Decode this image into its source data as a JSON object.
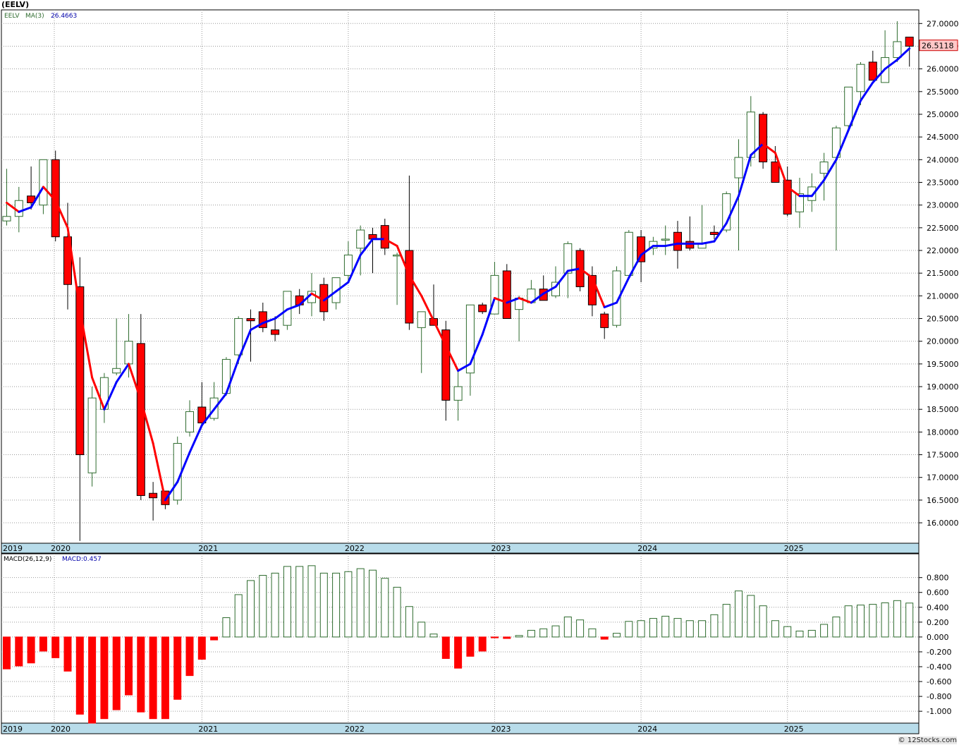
{
  "title": "(EELV)",
  "credit": "© 12Stocks.com",
  "colors": {
    "up": "#2e6b2e",
    "down": "#ff0000",
    "ma_up": "#0000ff",
    "ma_down": "#ff0000",
    "axis_band": "#b8dcea",
    "price_tag": "#ffc8c8"
  },
  "chart_data": [
    {
      "type": "candlestick",
      "name": "price",
      "legend": {
        "ticker": "EELV",
        "ma_label": "MA(3)",
        "ma_value": "26.4663"
      },
      "last_price_label": "26.5118",
      "ylim": [
        15.55,
        27.3
      ],
      "yticks": [
        "27.0000",
        "26.5000",
        "26.0000",
        "25.5000",
        "25.0000",
        "24.5000",
        "24.0000",
        "23.5000",
        "23.0000",
        "22.5000",
        "22.0000",
        "21.5000",
        "21.0000",
        "20.5000",
        "20.0000",
        "19.5000",
        "19.0000",
        "18.5000",
        "18.0000",
        "17.5000",
        "17.0000",
        "16.5000",
        "16.0000"
      ],
      "ytick_values": [
        27,
        26.5,
        26,
        25.5,
        25,
        24.5,
        24,
        23.5,
        23,
        22.5,
        22,
        21.5,
        21,
        20.5,
        20,
        19.5,
        19,
        18.5,
        18,
        17.5,
        17,
        16.5,
        16
      ],
      "xticks": [
        {
          "label": "2019",
          "idx": -0.5
        },
        {
          "label": "2020",
          "idx": 3.9
        },
        {
          "label": "2021",
          "idx": 16
        },
        {
          "label": "2022",
          "idx": 28
        },
        {
          "label": "2023",
          "idx": 40
        },
        {
          "label": "2024",
          "idx": 52
        },
        {
          "label": "2025",
          "idx": 64
        }
      ],
      "grid": true,
      "candles": [
        [
          22.65,
          23.8,
          22.55,
          22.75
        ],
        [
          22.75,
          23.4,
          22.4,
          23.1
        ],
        [
          23.2,
          23.85,
          22.9,
          23.05
        ],
        [
          23.0,
          24.0,
          22.8,
          24.0
        ],
        [
          24.0,
          24.2,
          22.2,
          22.3
        ],
        [
          22.3,
          23.05,
          20.7,
          21.25
        ],
        [
          21.2,
          21.85,
          15.6,
          17.5
        ],
        [
          17.1,
          19.0,
          16.8,
          18.75
        ],
        [
          18.5,
          19.3,
          18.2,
          19.2
        ],
        [
          19.3,
          20.5,
          19.25,
          19.4
        ],
        [
          19.5,
          20.6,
          19.2,
          20.0
        ],
        [
          19.95,
          20.6,
          16.5,
          16.6
        ],
        [
          16.65,
          16.9,
          16.05,
          16.55
        ],
        [
          16.7,
          16.7,
          16.3,
          16.4
        ],
        [
          16.5,
          17.9,
          16.4,
          17.75
        ],
        [
          18.0,
          18.7,
          17.9,
          18.45
        ],
        [
          18.55,
          19.1,
          18.15,
          18.2
        ],
        [
          18.3,
          19.1,
          18.25,
          18.75
        ],
        [
          18.85,
          19.65,
          18.8,
          19.6
        ],
        [
          19.7,
          20.55,
          19.5,
          20.5
        ],
        [
          20.5,
          20.7,
          19.55,
          20.45
        ],
        [
          20.65,
          20.85,
          20.2,
          20.3
        ],
        [
          20.25,
          20.55,
          20.0,
          20.15
        ],
        [
          20.35,
          21.1,
          20.25,
          21.1
        ],
        [
          21.0,
          21.15,
          20.6,
          20.8
        ],
        [
          20.85,
          21.5,
          20.55,
          21.1
        ],
        [
          21.25,
          21.4,
          20.45,
          20.65
        ],
        [
          20.85,
          21.4,
          20.7,
          21.4
        ],
        [
          21.45,
          22.2,
          21.3,
          21.9
        ],
        [
          22.05,
          22.55,
          21.45,
          22.45
        ],
        [
          22.35,
          22.5,
          21.5,
          22.25
        ],
        [
          22.55,
          22.7,
          21.9,
          22.05
        ],
        [
          21.9,
          21.95,
          20.8,
          21.9
        ],
        [
          22.0,
          23.65,
          20.25,
          20.4
        ],
        [
          20.3,
          20.65,
          19.3,
          20.65
        ],
        [
          20.5,
          21.25,
          20.35,
          20.35
        ],
        [
          20.25,
          20.45,
          18.25,
          18.7
        ],
        [
          18.7,
          19.4,
          18.25,
          19.0
        ],
        [
          19.3,
          20.8,
          18.8,
          20.8
        ],
        [
          20.8,
          20.85,
          20.6,
          20.65
        ],
        [
          20.6,
          21.75,
          20.6,
          21.45
        ],
        [
          21.55,
          21.7,
          20.5,
          20.5
        ],
        [
          20.7,
          21.0,
          20.0,
          20.95
        ],
        [
          20.85,
          21.35,
          20.85,
          21.15
        ],
        [
          21.15,
          21.45,
          20.9,
          20.9
        ],
        [
          21.0,
          21.65,
          20.95,
          21.3
        ],
        [
          21.5,
          22.2,
          20.95,
          22.15
        ],
        [
          22.0,
          22.05,
          21.1,
          21.2
        ],
        [
          21.45,
          21.65,
          20.55,
          20.8
        ],
        [
          20.6,
          20.65,
          20.05,
          20.3
        ],
        [
          20.35,
          21.65,
          20.3,
          21.55
        ],
        [
          21.45,
          22.45,
          21.45,
          22.4
        ],
        [
          22.3,
          22.45,
          21.3,
          21.75
        ],
        [
          22.05,
          22.3,
          21.9,
          22.2
        ],
        [
          22.25,
          22.55,
          21.9,
          22.25
        ],
        [
          22.4,
          22.65,
          21.6,
          22.0
        ],
        [
          22.2,
          22.75,
          22.0,
          22.05
        ],
        [
          22.05,
          23.0,
          22.05,
          22.15
        ],
        [
          22.4,
          22.55,
          22.25,
          22.35
        ],
        [
          22.45,
          23.3,
          22.4,
          23.25
        ],
        [
          23.6,
          24.45,
          22.0,
          24.05
        ],
        [
          24.05,
          25.4,
          23.85,
          25.05
        ],
        [
          25.0,
          25.05,
          23.8,
          23.95
        ],
        [
          23.95,
          24.3,
          23.5,
          23.5
        ],
        [
          23.55,
          23.85,
          22.75,
          22.8
        ],
        [
          22.85,
          23.6,
          22.5,
          23.25
        ],
        [
          23.1,
          23.7,
          22.85,
          23.4
        ],
        [
          23.7,
          24.15,
          23.1,
          23.95
        ],
        [
          24.05,
          24.75,
          22.0,
          24.7
        ],
        [
          24.75,
          25.6,
          24.6,
          25.6
        ],
        [
          25.5,
          26.15,
          25.2,
          26.1
        ],
        [
          26.15,
          26.4,
          25.75,
          25.75
        ],
        [
          25.7,
          26.85,
          25.75,
          26.25
        ],
        [
          26.25,
          27.05,
          26.15,
          26.6
        ],
        [
          26.7,
          26.7,
          26.05,
          26.5
        ]
      ],
      "ma3": [
        23.05,
        22.85,
        22.95,
        23.4,
        23.1,
        22.5,
        20.7,
        19.2,
        18.5,
        19.1,
        19.5,
        18.7,
        17.75,
        16.5,
        16.9,
        17.55,
        18.15,
        18.5,
        18.85,
        19.6,
        20.25,
        20.4,
        20.5,
        20.7,
        20.8,
        21.05,
        20.9,
        21.1,
        21.3,
        21.9,
        22.25,
        22.25,
        22.1,
        21.45,
        21.0,
        20.45,
        19.9,
        19.35,
        19.5,
        20.15,
        20.95,
        20.85,
        20.95,
        20.85,
        21.05,
        21.2,
        21.55,
        21.6,
        21.4,
        20.75,
        20.85,
        21.4,
        21.9,
        22.1,
        22.1,
        22.15,
        22.15,
        22.15,
        22.2,
        22.6,
        23.2,
        24.1,
        24.35,
        24.15,
        23.4,
        23.2,
        23.2,
        23.55,
        24.0,
        24.65,
        25.3,
        25.7,
        26.0,
        26.2,
        26.45
      ]
    },
    {
      "type": "bar",
      "name": "macd",
      "legend": {
        "label": "MACD(26,12,9)",
        "value_label": "MACD:0.457"
      },
      "ylim": [
        -1.16,
        1.12
      ],
      "yticks": [
        "0.800",
        "0.600",
        "0.400",
        "0.200",
        "0.000",
        "-0.200",
        "-0.400",
        "-0.600",
        "-0.800",
        "-1.000"
      ],
      "ytick_values": [
        0.8,
        0.6,
        0.4,
        0.2,
        0,
        -0.2,
        -0.4,
        -0.6,
        -0.8,
        -1.0
      ],
      "xticks": [
        {
          "label": "2019",
          "idx": -0.5
        },
        {
          "label": "2020",
          "idx": 3.9
        },
        {
          "label": "2021",
          "idx": 16
        },
        {
          "label": "2022",
          "idx": 28
        },
        {
          "label": "2023",
          "idx": 40
        },
        {
          "label": "2024",
          "idx": 52
        },
        {
          "label": "2025",
          "idx": 64
        }
      ],
      "values": [
        -0.43,
        -0.39,
        -0.35,
        -0.19,
        -0.28,
        -0.46,
        -1.04,
        -1.16,
        -1.1,
        -0.98,
        -0.78,
        -1.01,
        -1.1,
        -1.1,
        -0.84,
        -0.52,
        -0.3,
        -0.04,
        0.26,
        0.57,
        0.76,
        0.83,
        0.86,
        0.95,
        0.95,
        0.96,
        0.86,
        0.86,
        0.88,
        0.92,
        0.9,
        0.79,
        0.67,
        0.41,
        0.2,
        0.04,
        -0.29,
        -0.42,
        -0.26,
        -0.19,
        -0.01,
        -0.02,
        0.02,
        0.09,
        0.11,
        0.15,
        0.27,
        0.23,
        0.11,
        -0.03,
        0.05,
        0.21,
        0.22,
        0.25,
        0.28,
        0.25,
        0.22,
        0.22,
        0.3,
        0.44,
        0.62,
        0.56,
        0.42,
        0.22,
        0.14,
        0.08,
        0.09,
        0.17,
        0.27,
        0.42,
        0.43,
        0.44,
        0.46,
        0.49,
        0.457
      ]
    }
  ]
}
